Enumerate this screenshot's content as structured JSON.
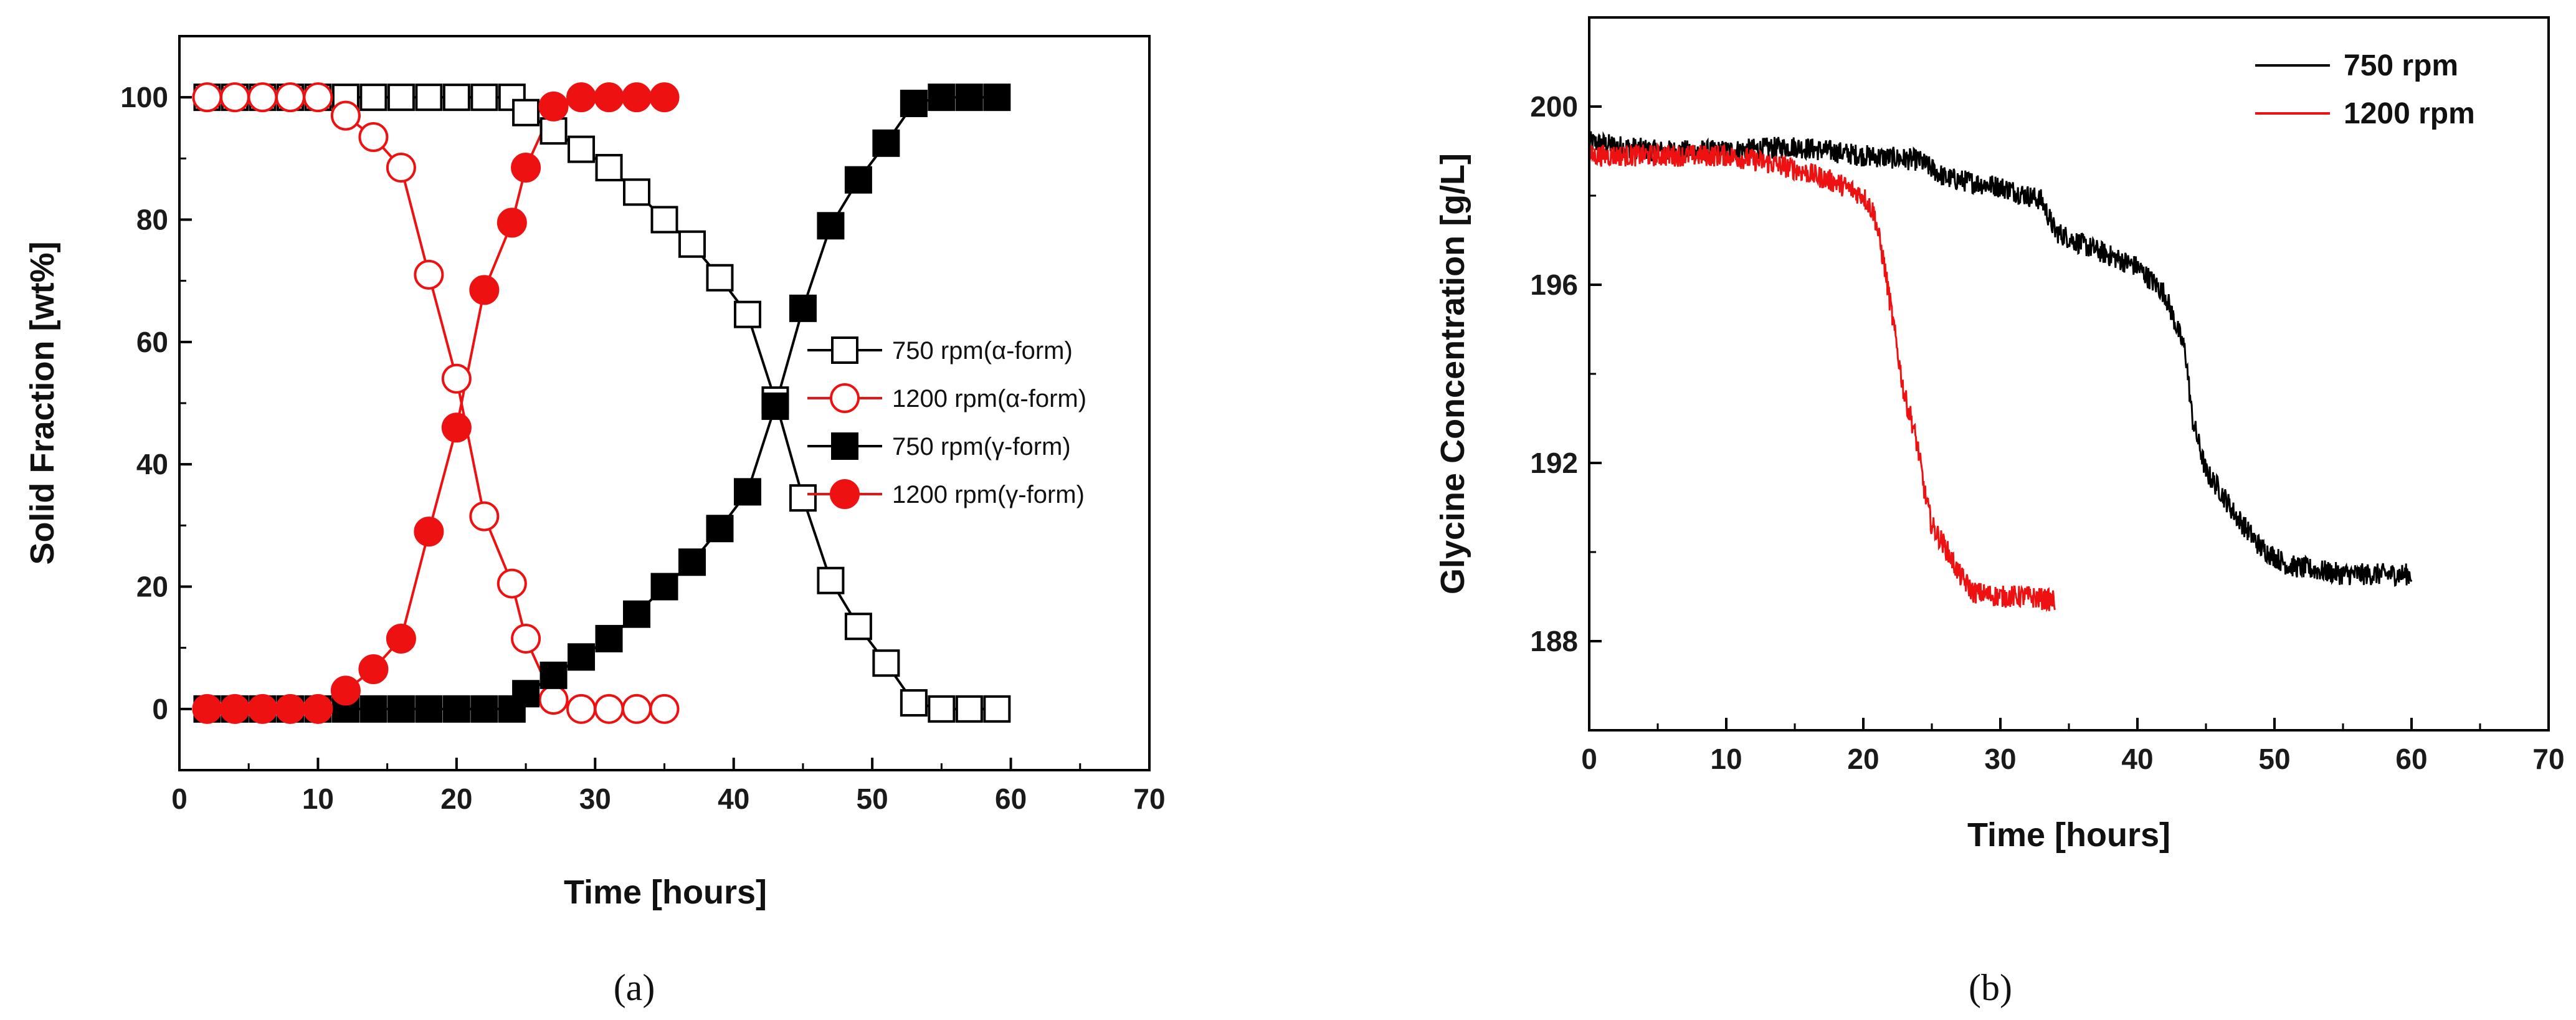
{
  "chart_data": [
    {
      "type": "line",
      "panel_label": "(a)",
      "xlabel": "Time [hours]",
      "ylabel": "Solid Fraction [wt%]",
      "xlim": [
        0,
        70
      ],
      "ylim": [
        -10,
        110
      ],
      "xticks": [
        0,
        10,
        20,
        30,
        40,
        50,
        60,
        70
      ],
      "yticks": [
        0,
        20,
        40,
        60,
        80,
        100
      ],
      "legend_position": "center-right",
      "series": [
        {
          "name": "750   rpm(α-form)",
          "color": "#000000",
          "marker": "square-open",
          "x": [
            2,
            4,
            6,
            8,
            10,
            12,
            14,
            16,
            18,
            20,
            22,
            24,
            25,
            27,
            29,
            31,
            33,
            35,
            37,
            39,
            41,
            43,
            45,
            47,
            49,
            51,
            53,
            55,
            57,
            59
          ],
          "y": [
            100,
            100,
            100,
            100,
            100,
            100,
            100,
            100,
            100,
            100,
            100,
            100,
            97.5,
            94.5,
            91.5,
            88.5,
            84.5,
            80,
            76,
            70.5,
            64.5,
            50.5,
            34.5,
            21,
            13.5,
            7.5,
            1,
            0,
            0,
            0
          ]
        },
        {
          "name": "1200 rpm(α-form)",
          "color": "#ee1111",
          "marker": "circle-open",
          "x": [
            2,
            4,
            6,
            8,
            10,
            12,
            14,
            16,
            18,
            20,
            22,
            24,
            25,
            27,
            29,
            31,
            33,
            35
          ],
          "y": [
            100,
            100,
            100,
            100,
            100,
            97,
            93.5,
            88.5,
            71,
            54,
            31.5,
            20.5,
            11.5,
            1.5,
            0,
            0,
            0,
            0
          ]
        },
        {
          "name": "750   rpm(γ-form)",
          "color": "#000000",
          "marker": "square-filled",
          "x": [
            2,
            4,
            6,
            8,
            10,
            12,
            14,
            16,
            18,
            20,
            22,
            24,
            25,
            27,
            29,
            31,
            33,
            35,
            37,
            39,
            41,
            43,
            45,
            47,
            49,
            51,
            53,
            55,
            57,
            59
          ],
          "y": [
            0,
            0,
            0,
            0,
            0,
            0,
            0,
            0,
            0,
            0,
            0,
            0,
            2.5,
            5.5,
            8.5,
            11.5,
            15.5,
            20,
            24,
            29.5,
            35.5,
            49.5,
            65.5,
            79,
            86.5,
            92.5,
            99,
            100,
            100,
            100
          ]
        },
        {
          "name": "1200 rpm(γ-form)",
          "color": "#ee1111",
          "marker": "circle-filled",
          "x": [
            2,
            4,
            6,
            8,
            10,
            12,
            14,
            16,
            18,
            20,
            22,
            24,
            25,
            27,
            29,
            31,
            33,
            35
          ],
          "y": [
            0,
            0,
            0,
            0,
            0,
            3,
            6.5,
            11.5,
            29,
            46,
            68.5,
            79.5,
            88.5,
            98.5,
            100,
            100,
            100,
            100
          ]
        }
      ]
    },
    {
      "type": "line",
      "panel_label": "(b)",
      "xlabel": "Time [hours]",
      "ylabel": "Glycine Concentration [g/L]",
      "xlim": [
        0,
        70
      ],
      "ylim": [
        186,
        202
      ],
      "xticks": [
        0,
        10,
        20,
        30,
        40,
        50,
        60,
        70
      ],
      "yticks": [
        188,
        192,
        196,
        200
      ],
      "legend_position": "top-right",
      "series": [
        {
          "name": "750   rpm",
          "color": "#000000",
          "x": [
            0,
            5,
            10,
            15,
            20,
            24,
            26,
            30,
            33,
            34,
            36,
            40,
            42,
            43.5,
            44,
            45,
            46,
            47,
            49,
            51,
            53,
            55,
            60
          ],
          "y": [
            199.2,
            199.0,
            199.0,
            199.1,
            198.9,
            198.8,
            198.4,
            198.2,
            197.9,
            197.2,
            196.9,
            196.4,
            195.8,
            194.5,
            193.0,
            191.8,
            191.4,
            190.9,
            190.1,
            189.7,
            189.6,
            189.5,
            189.5
          ]
        },
        {
          "name": "1200 rpm",
          "color": "#ee1111",
          "x": [
            0,
            5,
            10,
            12,
            15,
            18,
            20,
            20.8,
            21.5,
            22,
            22.5,
            23,
            23.5,
            24,
            24.5,
            25,
            26,
            27,
            28,
            30,
            32,
            34
          ],
          "y": [
            198.9,
            198.9,
            198.9,
            198.8,
            198.6,
            198.3,
            198.0,
            197.6,
            196.5,
            195.5,
            194.5,
            193.5,
            193.0,
            192.3,
            191.3,
            190.6,
            190.1,
            189.5,
            189.1,
            189.0,
            189.0,
            188.9
          ]
        }
      ]
    }
  ]
}
